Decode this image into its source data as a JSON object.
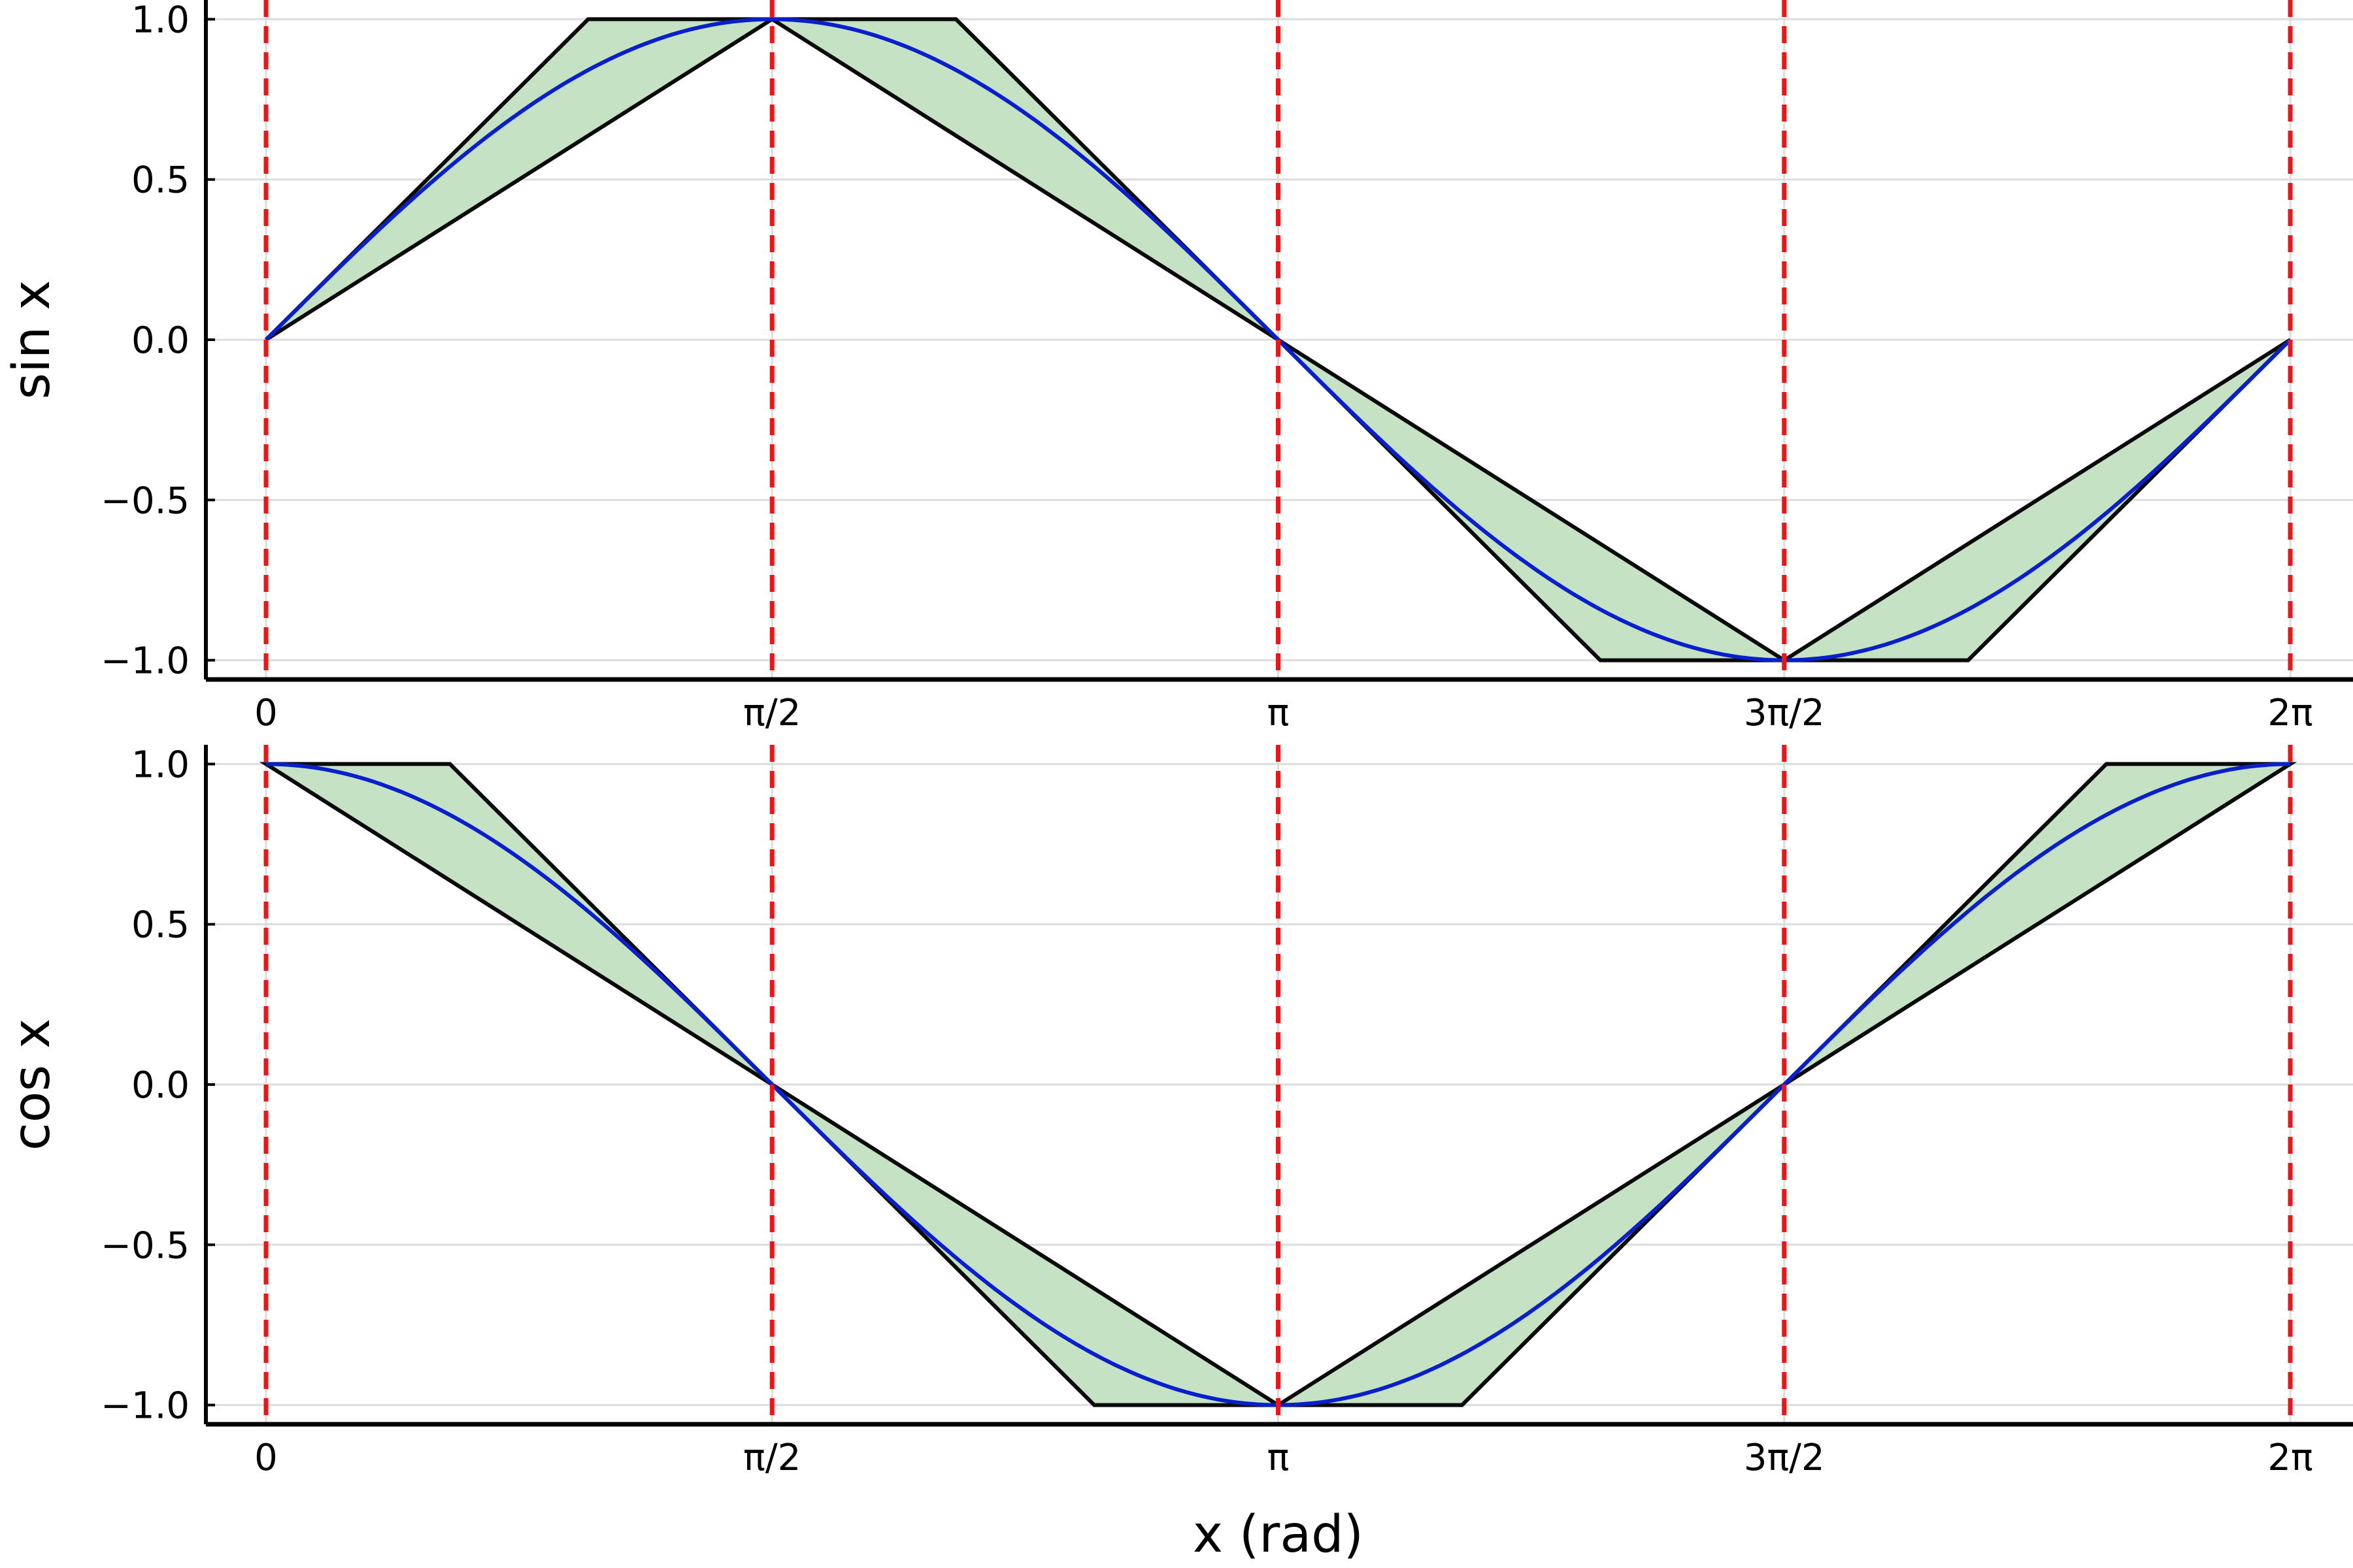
{
  "colors": {
    "curve": "#0a1fcc",
    "envelope_fill": "#c6e2c4",
    "envelope_stroke": "#0a0a0a",
    "vline": "#e8171a",
    "grid": "#dddddd",
    "axis": "#000000"
  },
  "chart_data": [
    {
      "type": "line",
      "ylabel": "sin x",
      "xlabel": "",
      "xlim": [
        0,
        6.2832
      ],
      "ylim": [
        -1.06,
        1.06
      ],
      "grid": true,
      "x_ticks": [
        0,
        1.5708,
        3.1416,
        4.7124,
        6.2832
      ],
      "x_tick_labels": [
        "0",
        "π/2",
        "π",
        "3π/2",
        "2π"
      ],
      "y_ticks": [
        -1.0,
        -0.5,
        0.0,
        0.5,
        1.0
      ],
      "y_tick_labels": [
        "−1.0",
        "−0.5",
        "0.0",
        "0.5",
        "1.0"
      ],
      "series": [
        {
          "kind": "curve",
          "x": [
            0,
            0.3927,
            0.7854,
            1.1781,
            1.5708,
            1.9635,
            2.3562,
            2.7489,
            3.1416,
            3.5343,
            3.927,
            4.3197,
            4.7124,
            5.1051,
            5.4978,
            5.8905,
            6.2832
          ],
          "y": [
            0,
            0.383,
            0.707,
            0.924,
            1.0,
            0.924,
            0.707,
            0.383,
            0,
            -0.383,
            -0.707,
            -0.924,
            -1.0,
            -0.924,
            -0.707,
            -0.383,
            0
          ]
        },
        {
          "kind": "envelope",
          "x": [
            0,
            1.0,
            1.5708,
            2.1416,
            3.1416,
            1.5708,
            0
          ],
          "y": [
            0,
            1.0,
            1.0,
            1.0,
            0,
            1.0,
            0
          ]
        },
        {
          "kind": "envelope",
          "x": [
            3.1416,
            4.1416,
            4.7124,
            5.2832,
            6.2832,
            4.7124,
            3.1416
          ],
          "y": [
            0,
            -1.0,
            -1.0,
            -1.0,
            0,
            -1.0,
            0
          ]
        }
      ],
      "vlines": [
        0,
        1.5708,
        3.1416,
        4.7124,
        6.2832
      ]
    },
    {
      "type": "line",
      "ylabel": "cos x",
      "xlabel": "x (rad)",
      "xlim": [
        0,
        6.2832
      ],
      "ylim": [
        -1.06,
        1.06
      ],
      "grid": true,
      "x_ticks": [
        0,
        1.5708,
        3.1416,
        4.7124,
        6.2832
      ],
      "x_tick_labels": [
        "0",
        "π/2",
        "π",
        "3π/2",
        "2π"
      ],
      "y_ticks": [
        -1.0,
        -0.5,
        0.0,
        0.5,
        1.0
      ],
      "y_tick_labels": [
        "−1.0",
        "−0.5",
        "0.0",
        "0.5",
        "1.0"
      ],
      "series": [
        {
          "kind": "curve",
          "x": [
            0,
            0.3927,
            0.7854,
            1.1781,
            1.5708,
            1.9635,
            2.3562,
            2.7489,
            3.1416,
            3.5343,
            3.927,
            4.3197,
            4.7124,
            5.1051,
            5.4978,
            5.8905,
            6.2832
          ],
          "y": [
            1.0,
            0.924,
            0.707,
            0.383,
            0,
            -0.383,
            -0.707,
            -0.924,
            -1.0,
            -0.924,
            -0.707,
            -0.383,
            0,
            0.383,
            0.707,
            0.924,
            1.0
          ]
        },
        {
          "kind": "envelope",
          "x": [
            0,
            0.5708,
            1.5708,
            0
          ],
          "y": [
            1.0,
            1.0,
            0,
            1.0
          ]
        },
        {
          "kind": "envelope",
          "x": [
            1.5708,
            2.5708,
            3.1416,
            3.7124,
            4.7124,
            3.1416,
            1.5708
          ],
          "y": [
            0,
            -1.0,
            -1.0,
            -1.0,
            0,
            -1.0,
            0
          ]
        },
        {
          "kind": "envelope",
          "x": [
            4.7124,
            5.7124,
            6.2832,
            4.7124
          ],
          "y": [
            0,
            1.0,
            1.0,
            0
          ]
        }
      ],
      "vlines": [
        0,
        1.5708,
        3.1416,
        4.7124,
        6.2832
      ]
    }
  ]
}
